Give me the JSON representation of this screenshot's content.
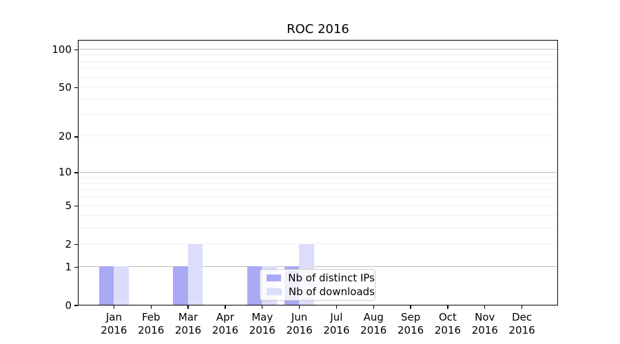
{
  "chart_data": {
    "type": "bar",
    "title": "ROC 2016",
    "x_ticks": [
      {
        "month": "Jan",
        "year": "2016"
      },
      {
        "month": "Feb",
        "year": "2016"
      },
      {
        "month": "Mar",
        "year": "2016"
      },
      {
        "month": "Apr",
        "year": "2016"
      },
      {
        "month": "May",
        "year": "2016"
      },
      {
        "month": "Jun",
        "year": "2016"
      },
      {
        "month": "Jul",
        "year": "2016"
      },
      {
        "month": "Aug",
        "year": "2016"
      },
      {
        "month": "Sep",
        "year": "2016"
      },
      {
        "month": "Oct",
        "year": "2016"
      },
      {
        "month": "Nov",
        "year": "2016"
      },
      {
        "month": "Dec",
        "year": "2016"
      }
    ],
    "series": [
      {
        "name": "Nb of distinct IPs",
        "color": "#a9a9f5",
        "values": [
          1,
          0,
          1,
          0,
          1,
          1,
          0,
          0,
          0,
          0,
          0,
          0
        ]
      },
      {
        "name": "Nb of downloads",
        "color": "#dcdcfb",
        "values": [
          1,
          0,
          2,
          0,
          1,
          2,
          0,
          0,
          0,
          0,
          0,
          0
        ]
      }
    ],
    "y_ticks": [
      {
        "label": "0",
        "value": 0
      },
      {
        "label": "1",
        "value": 1
      },
      {
        "label": "2",
        "value": 2
      },
      {
        "label": "5",
        "value": 5
      },
      {
        "label": "10",
        "value": 10
      },
      {
        "label": "20",
        "value": 20
      },
      {
        "label": "50",
        "value": 50
      },
      {
        "label": "100",
        "value": 100
      }
    ],
    "y_scale": "log(1+y)",
    "ylim": [
      0,
      117
    ],
    "y_major_gridlines": [
      1,
      10,
      100
    ],
    "y_minor_gridlines": [
      2,
      3,
      4,
      5,
      6,
      7,
      8,
      9,
      20,
      30,
      40,
      50,
      60,
      70,
      80,
      90
    ],
    "grid": true,
    "legend_position": "lower center-right"
  },
  "colors": {
    "background": "#ffffff",
    "axis": "#000000",
    "grid_major": "#bdbdbd",
    "grid_minor": "#f0f0f0",
    "legend_border": "#cccccc"
  }
}
